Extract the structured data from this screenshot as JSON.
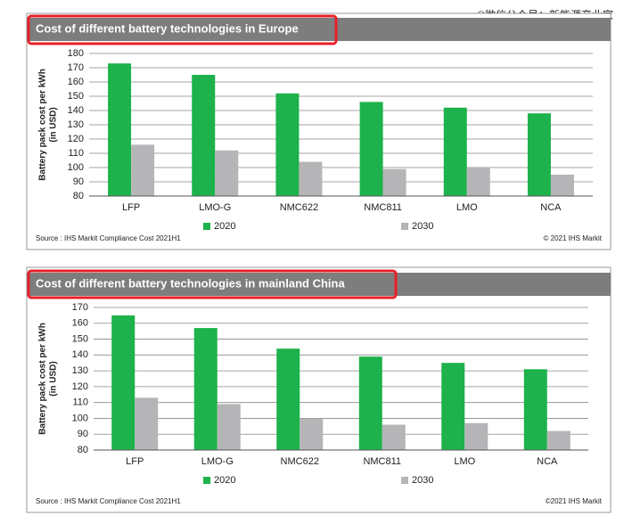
{
  "watermark": "©微信公众号：新能源产业家",
  "chart_data": [
    {
      "type": "bar",
      "title": "Cost of different battery technologies in Europe",
      "ylabel": [
        "Battery pack cost per kWh",
        "(in USD)"
      ],
      "categories": [
        "LFP",
        "LMO-G",
        "NMC622",
        "NMC811",
        "LMO",
        "NCA"
      ],
      "series": [
        {
          "name": "2020",
          "color": "#1db24b",
          "values": [
            173,
            165,
            152,
            146,
            142,
            138
          ]
        },
        {
          "name": "2030",
          "color": "#b5b5b7",
          "values": [
            116,
            112,
            104,
            99,
            100,
            95
          ]
        }
      ],
      "ylim": [
        80,
        180
      ],
      "yticks": [
        80,
        90,
        100,
        110,
        120,
        130,
        140,
        150,
        160,
        170,
        180
      ],
      "grid": true,
      "source": "Source : IHS Markit Compliance Cost 2021H1",
      "copyright": "© 2021 IHS Markit"
    },
    {
      "type": "bar",
      "title": "Cost of different battery technologies in mainland China",
      "ylabel": [
        "Battery pack cost per kWh",
        "(in USD)"
      ],
      "categories": [
        "LFP",
        "LMO-G",
        "NMC622",
        "NMC811",
        "LMO",
        "NCA"
      ],
      "series": [
        {
          "name": "2020",
          "color": "#1db24b",
          "values": [
            165,
            157,
            144,
            139,
            135,
            131
          ]
        },
        {
          "name": "2030",
          "color": "#b5b5b7",
          "values": [
            113,
            109,
            100,
            96,
            97,
            92
          ]
        }
      ],
      "ylim": [
        80,
        170
      ],
      "yticks": [
        80,
        90,
        100,
        110,
        120,
        130,
        140,
        150,
        160,
        170
      ],
      "grid": true,
      "source": "Source : IHS Markit Compliance Cost 2021H1",
      "copyright": "©2021 IHS Markit"
    }
  ]
}
